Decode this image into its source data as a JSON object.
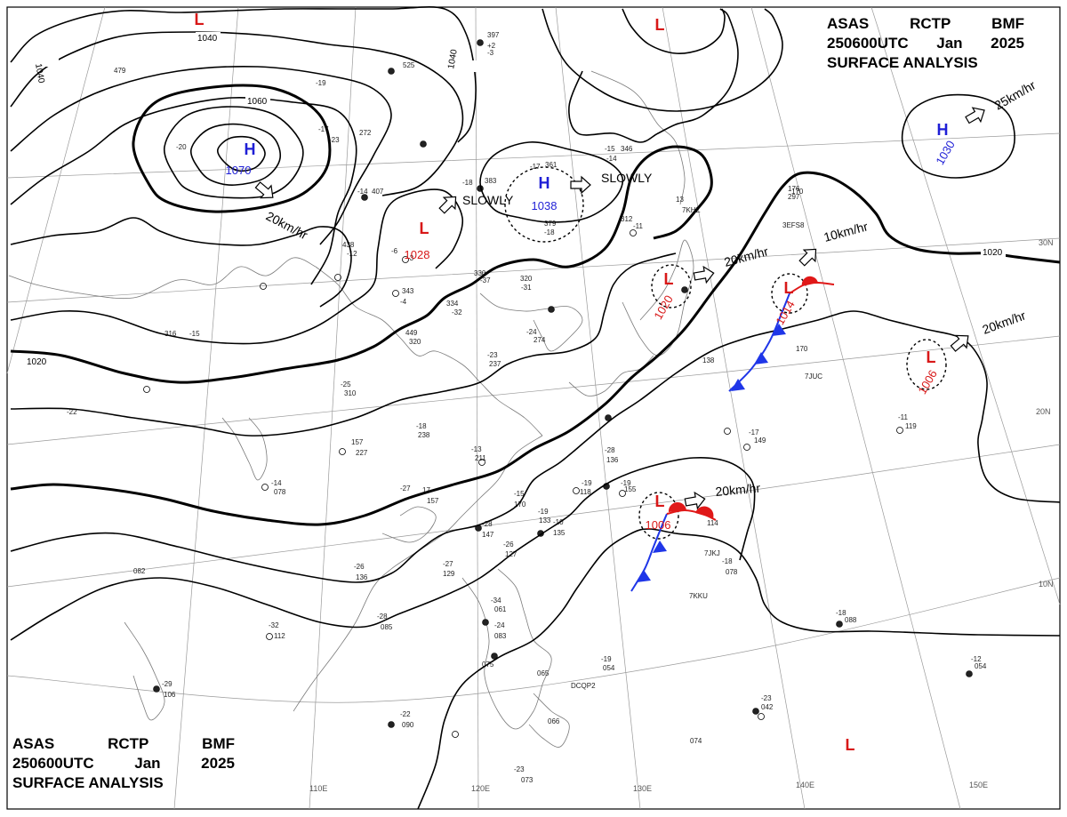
{
  "header": {
    "line1": [
      "ASAS",
      "RCTP",
      "BMF"
    ],
    "line2": [
      "250600UTC",
      "Jan",
      "2025"
    ],
    "line3": "SURFACE  ANALYSIS"
  },
  "colors": {
    "high": "#1f1fd6",
    "low": "#d81818",
    "isobar": "#000000",
    "grid": "#9a9a9a",
    "coast": "#7a7a7a",
    "cold_front": "#1f36e8",
    "warm_front": "#e01818"
  },
  "grid_labels": {
    "lon": [
      "110E",
      "120E",
      "130E",
      "140E",
      "150E"
    ],
    "lat": [
      "30N",
      "20N",
      "10N"
    ]
  },
  "isobar_labels": [
    "1040",
    "1040",
    "1060",
    "1040",
    "1020",
    "1020"
  ],
  "pressure_centers": [
    {
      "type": "H",
      "value": "1070"
    },
    {
      "type": "H",
      "value": "1038"
    },
    {
      "type": "H",
      "value": "1030"
    },
    {
      "type": "L",
      "value": "1028"
    },
    {
      "type": "L",
      "value": "1020"
    },
    {
      "type": "L",
      "value": "1014"
    },
    {
      "type": "L",
      "value": "1006"
    },
    {
      "type": "L",
      "value": "1006"
    },
    {
      "type": "L",
      "value": ""
    },
    {
      "type": "L",
      "value": ""
    },
    {
      "type": "L",
      "value": ""
    }
  ],
  "motion_labels": [
    "20km/hr",
    "SLOWLY",
    "SLOWLY",
    "25km/hr",
    "20km/hr",
    "10km/hr",
    "20km/hr",
    "20km/hr"
  ],
  "station_plots": [
    "397",
    "+2",
    "-3",
    "525",
    "-19",
    "479",
    "-20",
    "-17",
    "272",
    "-23",
    "-14",
    "407",
    "-15",
    "346",
    "-14",
    "-17",
    "361",
    "-18",
    "383",
    "379",
    "-18",
    "312",
    "-11",
    "438",
    "-12",
    "-6",
    "170",
    "-3",
    "343",
    "-4",
    "330",
    "-37",
    "320",
    "-31",
    "334",
    "-32",
    "316",
    "-15",
    "449",
    "320",
    "-24",
    "274",
    "-23",
    "237",
    "-25",
    "310",
    "-18",
    "238",
    "-13",
    "211",
    "-22",
    "157",
    "227",
    "-14",
    "078",
    "-27",
    "17",
    "157",
    "-28",
    "136",
    "-19",
    "118",
    "-19",
    "155",
    "-15",
    "170",
    "-19",
    "133",
    "-28",
    "147",
    "-10",
    "135",
    "-26",
    "127",
    "-26",
    "136",
    "-27",
    "129",
    "-28",
    "085",
    "-32",
    "112",
    "082",
    "-29",
    "106",
    "-22",
    "090",
    "-34",
    "061",
    "-24",
    "083",
    "075",
    "065",
    "-23",
    "073",
    "066",
    "-23",
    "042",
    "-19",
    "054",
    "-12",
    "054",
    "074",
    "-18",
    "088",
    "-18",
    "078",
    "114",
    "-11",
    "119",
    "-17",
    "149",
    "138",
    "170",
    "176",
    "297",
    "13",
    "7KHZ",
    "7JUC",
    "7JKJ",
    "7KKU",
    "DCQP2",
    "3EFS8"
  ]
}
